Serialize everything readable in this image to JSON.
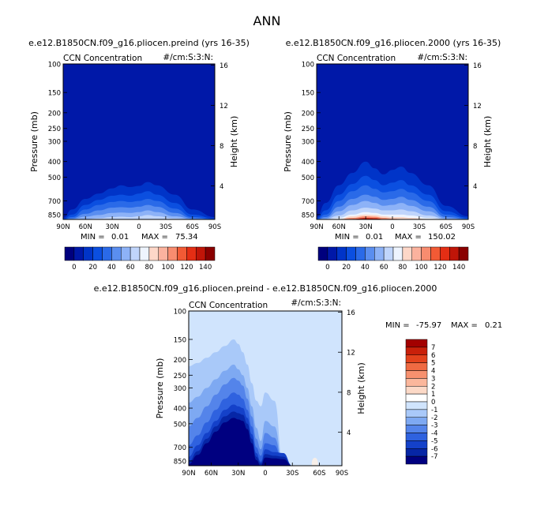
{
  "main_title": "ANN",
  "chart_data": [
    {
      "type": "contour",
      "title": "e.e12.B1850CN.f09_g16.pliocen.preind (yrs 16-35)",
      "field_label": "CCN Concentration",
      "units_label": "#/cm:S:3:N:",
      "xlabel": "",
      "ylabel": "Pressure (mb)",
      "ylabel_right": "Height (km)",
      "x_ticks": [
        "90N",
        "60N",
        "30N",
        "0",
        "30S",
        "60S",
        "90S"
      ],
      "y_ticks": [
        100,
        150,
        200,
        250,
        300,
        400,
        500,
        700,
        850
      ],
      "y_right_ticks": [
        16,
        12,
        8,
        4
      ],
      "min_label": "MIN =",
      "min_value": "0.01",
      "max_label": "MAX =",
      "max_value": "75.34",
      "colorbar_ticks": [
        0,
        20,
        40,
        60,
        80,
        100,
        120,
        140
      ],
      "levels": [
        0,
        10,
        20,
        30,
        40,
        50,
        60,
        70,
        80,
        90,
        100,
        110,
        120,
        130,
        140
      ],
      "top_pressure_by_level_mb": {
        "lats": [
          -85,
          -60,
          -40,
          -20,
          -10,
          0,
          10,
          20,
          30,
          45,
          60,
          75,
          85
        ],
        "0": [
          880,
          790,
          640,
          560,
          535,
          565,
          575,
          560,
          585,
          630,
          680,
          790,
          890
        ],
        "10": [
          900,
          850,
          720,
          640,
          610,
          630,
          650,
          640,
          650,
          690,
          740,
          850,
          905
        ],
        "20": [
          905,
          880,
          780,
          700,
          680,
          700,
          710,
          700,
          710,
          740,
          790,
          880,
          910
        ],
        "30": [
          910,
          895,
          830,
          760,
          740,
          760,
          770,
          765,
          770,
          800,
          840,
          895,
          910
        ],
        "40": [
          910,
          905,
          870,
          820,
          800,
          820,
          830,
          825,
          830,
          855,
          875,
          905,
          910
        ],
        "50": [
          910,
          910,
          895,
          870,
          855,
          870,
          880,
          875,
          880,
          895,
          905,
          910,
          910
        ]
      }
    },
    {
      "type": "contour",
      "title": "e.e12.B1850CN.f09_g16.pliocen.2000 (yrs 16-35)",
      "field_label": "CCN Concentration",
      "units_label": "#/cm:S:3:N:",
      "xlabel": "",
      "ylabel": "Pressure (mb)",
      "ylabel_right": "Height (km)",
      "x_ticks": [
        "90N",
        "60N",
        "30N",
        "0",
        "30S",
        "60S",
        "90S"
      ],
      "y_ticks": [
        100,
        150,
        200,
        250,
        300,
        400,
        500,
        700,
        850
      ],
      "y_right_ticks": [
        16,
        12,
        8,
        4
      ],
      "min_label": "MIN =",
      "min_value": "0.01",
      "max_label": "MAX =",
      "max_value": "150.02",
      "colorbar_ticks": [
        0,
        20,
        40,
        60,
        80,
        100,
        120,
        140
      ],
      "levels": [
        0,
        10,
        20,
        30,
        40,
        50,
        60,
        70,
        80,
        90,
        100,
        110,
        120,
        130,
        140
      ],
      "top_pressure_by_level_mb": {
        "lats": [
          -85,
          -60,
          -40,
          -20,
          -10,
          0,
          10,
          20,
          30,
          45,
          60,
          75,
          85
        ],
        "0": [
          870,
          750,
          560,
          470,
          430,
          450,
          480,
          440,
          400,
          470,
          560,
          720,
          880
        ],
        "10": [
          890,
          810,
          640,
          560,
          520,
          540,
          560,
          520,
          490,
          550,
          640,
          800,
          900
        ],
        "20": [
          900,
          850,
          700,
          620,
          590,
          610,
          620,
          590,
          560,
          610,
          700,
          850,
          905
        ],
        "30": [
          905,
          880,
          760,
          690,
          660,
          680,
          690,
          660,
          640,
          680,
          760,
          880,
          910
        ],
        "40": [
          910,
          895,
          810,
          750,
          720,
          740,
          750,
          720,
          700,
          740,
          810,
          895,
          910
        ],
        "50": [
          910,
          905,
          860,
          810,
          790,
          800,
          800,
          780,
          770,
          800,
          860,
          905,
          910
        ],
        "60": [
          910,
          910,
          890,
          860,
          850,
          850,
          850,
          830,
          820,
          850,
          890,
          910,
          910
        ],
        "70": [
          910,
          910,
          905,
          890,
          880,
          880,
          870,
          855,
          850,
          870,
          905,
          910,
          910
        ],
        "90": [
          910,
          910,
          910,
          905,
          905,
          900,
          890,
          875,
          870,
          890,
          910,
          910,
          910
        ],
        "120": [
          910,
          910,
          910,
          910,
          910,
          910,
          905,
          895,
          893,
          905,
          910,
          910,
          910
        ]
      }
    },
    {
      "type": "contour",
      "title": "e.e12.B1850CN.f09_g16.pliocen.preind - e.e12.B1850CN.f09_g16.pliocen.2000",
      "field_label": "CCN Concentration",
      "units_label": "#/cm:S:3:N:",
      "xlabel": "",
      "ylabel": "Pressure (mb)",
      "ylabel_right": "Height (km)",
      "x_ticks": [
        "90N",
        "60N",
        "30N",
        "0",
        "30S",
        "60S",
        "90S"
      ],
      "y_ticks": [
        100,
        150,
        200,
        250,
        300,
        400,
        500,
        700,
        850
      ],
      "y_right_ticks": [
        16,
        12,
        8,
        4
      ],
      "min_label": "MIN =",
      "min_value": "-75.97",
      "max_label": "MAX =",
      "max_value": "0.21",
      "colorbar_ticks": [
        7,
        6,
        5,
        4,
        3,
        2,
        1,
        0,
        -1,
        -2,
        -3,
        -4,
        -5,
        -6,
        -7
      ],
      "levels_below_zero": [
        "-0.5",
        "-1",
        "-2",
        "-3",
        "-4",
        "-5",
        "-6",
        "-7"
      ],
      "top_pressure_by_level_mb": {
        "lats": [
          -85,
          -70,
          -55,
          -40,
          -30,
          -20,
          -10,
          0,
          5,
          10,
          15,
          20,
          25,
          30,
          35,
          45,
          55,
          65,
          75,
          85
        ],
        "-0.5": [
          910,
          910,
          910,
          910,
          910,
          910,
          910,
          100,
          100,
          100,
          100,
          100,
          100,
          100,
          100,
          100,
          100,
          100,
          100,
          100
        ],
        "-1": [
          910,
          910,
          910,
          910,
          910,
          910,
          360,
          320,
          390,
          360,
          280,
          215,
          180,
          160,
          150,
          165,
          180,
          195,
          210,
          220
        ],
        "-2": [
          910,
          910,
          910,
          910,
          910,
          910,
          520,
          480,
          640,
          530,
          390,
          300,
          250,
          230,
          215,
          235,
          265,
          300,
          340,
          370
        ],
        "-3": [
          910,
          910,
          910,
          910,
          910,
          910,
          610,
          570,
          720,
          620,
          450,
          350,
          290,
          270,
          260,
          285,
          330,
          390,
          460,
          520
        ],
        "-4": [
          910,
          910,
          910,
          910,
          910,
          910,
          680,
          660,
          790,
          700,
          520,
          410,
          350,
          330,
          320,
          350,
          410,
          490,
          590,
          680
        ],
        "-5": [
          910,
          910,
          910,
          910,
          910,
          760,
          750,
          720,
          860,
          760,
          580,
          460,
          400,
          390,
          380,
          410,
          480,
          570,
          680,
          800
        ],
        "-6": [
          910,
          910,
          910,
          910,
          910,
          800,
          790,
          770,
          880,
          800,
          620,
          500,
          440,
          430,
          420,
          450,
          520,
          620,
          740,
          860
        ],
        "-7": [
          910,
          910,
          910,
          910,
          910,
          830,
          820,
          810,
          910,
          840,
          660,
          540,
          480,
          470,
          460,
          490,
          560,
          660,
          780,
          890
        ]
      }
    }
  ],
  "colors": {
    "seq": [
      "#00007e",
      "#0018a8",
      "#0034c8",
      "#0b4fe0",
      "#2a6ae8",
      "#5a8ef0",
      "#8db2f7",
      "#c0d5fb",
      "#eef4fe",
      "#fdd7c8",
      "#fbb29e",
      "#f88c6f",
      "#f25a35",
      "#e42e14",
      "#c01508",
      "#8a0000"
    ],
    "diff_neg": [
      "#d0e4fd",
      "#a9c9f9",
      "#7ea9f2",
      "#5484ea",
      "#2f62df",
      "#1441c9",
      "#0626a6",
      "#000080"
    ],
    "diff_zero": "#ffffff",
    "diff_pos": [
      "#fcd9c7",
      "#fbb79c",
      "#f7916f",
      "#ef6a42",
      "#e3421c",
      "#c9200a",
      "#a30000"
    ]
  }
}
